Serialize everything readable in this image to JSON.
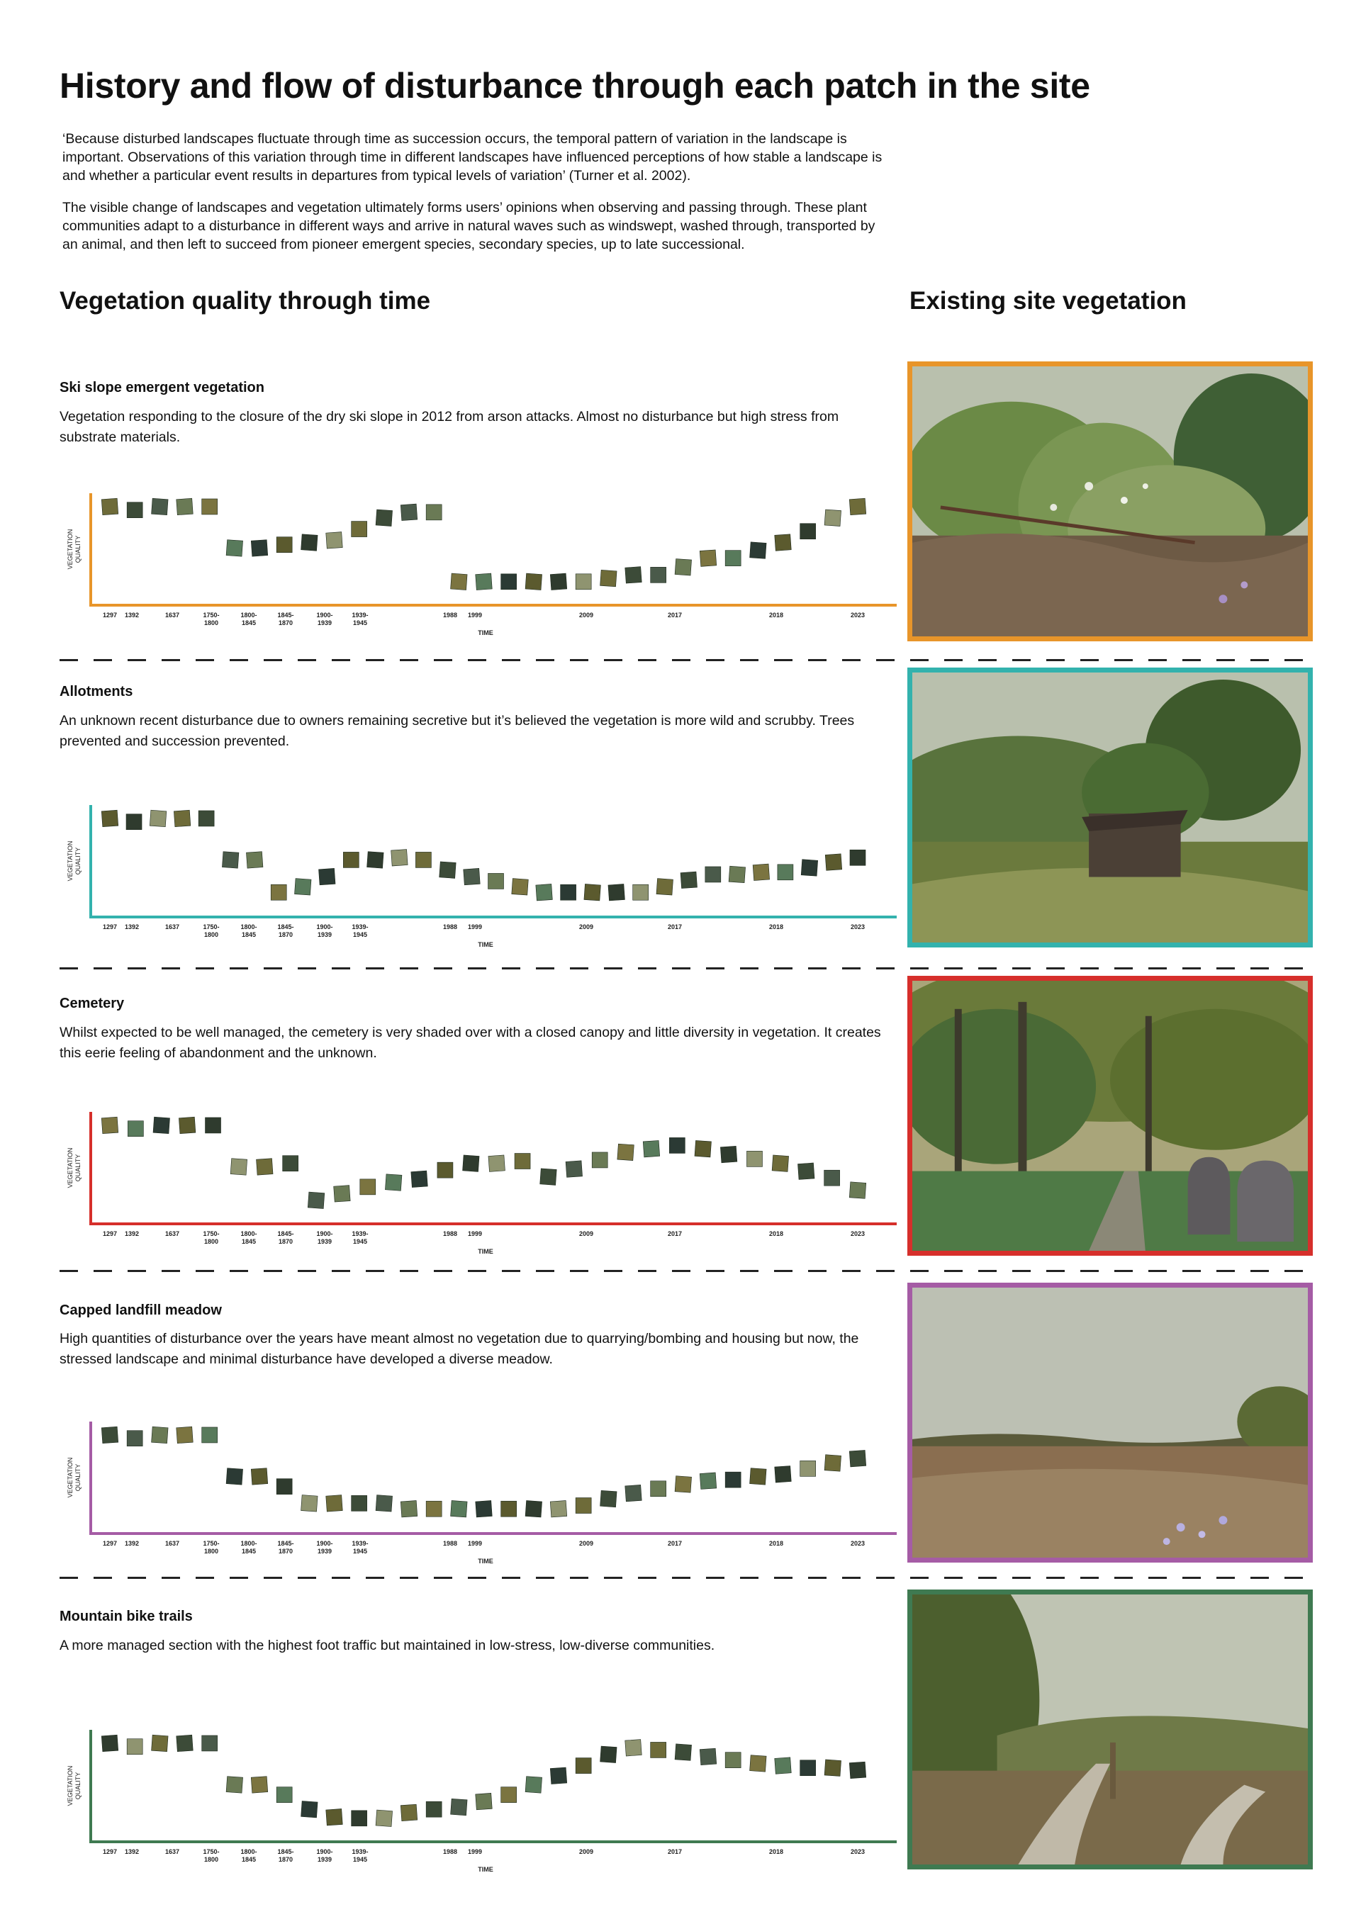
{
  "title": "History and flow of disturbance through each patch in the site",
  "intro": [
    "‘Because disturbed landscapes fluctuate through time as succession occurs, the temporal pattern of variation in the landscape is important. Observations of this variation through time in different landscapes have influenced perceptions of how stable a landscape is and whether a particular event results in departures from typical levels of variation’ (Turner et al. 2002).",
    "The visible change of landscapes and vegetation ultimately forms users’ opinions when observing and passing through. These plant communities adapt to a disturbance in different ways and arrive in natural waves such as windswept, washed through, transported by an animal, and then left to succeed from pioneer emergent species, secondary species, up to late successional."
  ],
  "headings": {
    "left": "Vegetation quality through time",
    "right": "Existing site vegetation"
  },
  "axis": {
    "ylabel_line1": "VEGETATION",
    "ylabel_line2": "QUALITY",
    "xlabel": "TIME",
    "ticks": [
      {
        "l1": "1297",
        "l2": ""
      },
      {
        "l1": "1392",
        "l2": ""
      },
      {
        "l1": "1637",
        "l2": ""
      },
      {
        "l1": "1750-",
        "l2": "1800"
      },
      {
        "l1": "1800-",
        "l2": "1845"
      },
      {
        "l1": "1845-",
        "l2": "1870"
      },
      {
        "l1": "1900-",
        "l2": "1939"
      },
      {
        "l1": "1939-",
        "l2": "1945"
      },
      {
        "l1": "1988",
        "l2": ""
      },
      {
        "l1": "1999",
        "l2": ""
      },
      {
        "l1": "2009",
        "l2": ""
      },
      {
        "l1": "2017",
        "l2": ""
      },
      {
        "l1": "2018",
        "l2": ""
      },
      {
        "l1": "2023",
        "l2": ""
      }
    ]
  },
  "sections": [
    {
      "title": "Ski slope emergent vegetation",
      "description": "Vegetation responding to the closure of the dry ski slope in 2012 from arson attacks. Almost no disturbance but high stress from substrate materials.",
      "color": "#e8952a",
      "photo": "ski-slope-vegetation-photo"
    },
    {
      "title": "Allotments",
      "description": "An unknown recent disturbance due to owners remaining secretive but it’s believed the vegetation is more wild and scrubby. Trees prevented and succession prevented.",
      "color": "#33b2ad",
      "photo": "allotments-photo"
    },
    {
      "title": "Cemetery",
      "description": "Whilst expected to be well managed, the cemetery is very shaded over with a closed canopy and little diversity in vegetation. It creates this eerie feeling of abandonment and the unknown.",
      "color": "#d62f2b",
      "photo": "cemetery-photo"
    },
    {
      "title": "Capped landfill meadow",
      "description": "High quantities of disturbance over the years have meant almost no vegetation due to quarrying/bombing and housing but now, the stressed landscape and minimal disturbance have developed a diverse meadow.",
      "color": "#a55ca5",
      "photo": "landfill-meadow-photo"
    },
    {
      "title": "Mountain bike trails",
      "description": "A more managed section with the highest foot traffic but maintained in low-stress, low-diverse communities.",
      "color": "#3f7a51",
      "photo": "bike-trails-photo"
    }
  ],
  "chart_data": [
    {
      "type": "scatter",
      "title": "Ski slope emergent vegetation",
      "xlabel": "TIME",
      "ylabel": "VEGETATION QUALITY",
      "x_ticks": [
        "1297",
        "1392",
        "1637",
        "1750-1800",
        "1800-1845",
        "1845-1870",
        "1900-1939",
        "1939-1945",
        "1988",
        "1999",
        "2009",
        "2017",
        "2018",
        "2023"
      ],
      "values": [
        0.88,
        0.85,
        0.88,
        0.88,
        0.88,
        0.51,
        0.51,
        0.54,
        0.56,
        0.58,
        0.68,
        0.78,
        0.83,
        0.83,
        0.21,
        0.21,
        0.21,
        0.21,
        0.21,
        0.21,
        0.24,
        0.27,
        0.27,
        0.34,
        0.42,
        0.42,
        0.49,
        0.56,
        0.66,
        0.78,
        0.88
      ]
    },
    {
      "type": "scatter",
      "title": "Allotments",
      "xlabel": "TIME",
      "ylabel": "VEGETATION QUALITY",
      "x_ticks": [
        "1297",
        "1392",
        "1637",
        "1750-1800",
        "1800-1845",
        "1845-1870",
        "1900-1939",
        "1939-1945",
        "1988",
        "1999",
        "2009",
        "2017",
        "2018",
        "2023"
      ],
      "values": [
        0.88,
        0.85,
        0.88,
        0.88,
        0.88,
        0.51,
        0.51,
        0.22,
        0.27,
        0.36,
        0.51,
        0.51,
        0.53,
        0.51,
        0.42,
        0.36,
        0.32,
        0.27,
        0.22,
        0.22,
        0.22,
        0.22,
        0.22,
        0.27,
        0.33,
        0.38,
        0.38,
        0.4,
        0.4,
        0.44,
        0.49,
        0.53
      ]
    },
    {
      "type": "scatter",
      "title": "Cemetery",
      "xlabel": "TIME",
      "ylabel": "VEGETATION QUALITY",
      "x_ticks": [
        "1297",
        "1392",
        "1637",
        "1750-1800",
        "1800-1845",
        "1845-1870",
        "1900-1939",
        "1939-1945",
        "1988",
        "1999",
        "2009",
        "2017",
        "2018",
        "2023"
      ],
      "values": [
        0.88,
        0.85,
        0.88,
        0.88,
        0.88,
        0.51,
        0.51,
        0.54,
        0.21,
        0.27,
        0.33,
        0.37,
        0.4,
        0.48,
        0.54,
        0.54,
        0.56,
        0.42,
        0.49,
        0.57,
        0.64,
        0.67,
        0.7,
        0.67,
        0.62,
        0.58,
        0.54,
        0.47,
        0.41,
        0.3
      ]
    },
    {
      "type": "scatter",
      "title": "Capped landfill meadow",
      "xlabel": "TIME",
      "ylabel": "VEGETATION QUALITY",
      "x_ticks": [
        "1297",
        "1392",
        "1637",
        "1750-1800",
        "1800-1845",
        "1845-1870",
        "1900-1939",
        "1939-1945",
        "1988",
        "1999",
        "2009",
        "2017",
        "2018",
        "2023"
      ],
      "values": [
        0.88,
        0.85,
        0.88,
        0.88,
        0.88,
        0.51,
        0.51,
        0.42,
        0.27,
        0.27,
        0.27,
        0.27,
        0.22,
        0.22,
        0.22,
        0.22,
        0.22,
        0.22,
        0.22,
        0.25,
        0.31,
        0.36,
        0.4,
        0.44,
        0.47,
        0.48,
        0.51,
        0.53,
        0.58,
        0.63,
        0.67
      ]
    },
    {
      "type": "scatter",
      "title": "Mountain bike trails",
      "xlabel": "TIME",
      "ylabel": "VEGETATION QUALITY",
      "x_ticks": [
        "1297",
        "1392",
        "1637",
        "1750-1800",
        "1800-1845",
        "1845-1870",
        "1900-1939",
        "1939-1945",
        "1988",
        "1999",
        "2009",
        "2017",
        "2018",
        "2023"
      ],
      "values": [
        0.88,
        0.85,
        0.88,
        0.88,
        0.88,
        0.51,
        0.51,
        0.42,
        0.29,
        0.22,
        0.21,
        0.21,
        0.26,
        0.29,
        0.31,
        0.36,
        0.42,
        0.51,
        0.59,
        0.68,
        0.78,
        0.84,
        0.82,
        0.8,
        0.76,
        0.73,
        0.7,
        0.68,
        0.66,
        0.66,
        0.64
      ]
    }
  ]
}
